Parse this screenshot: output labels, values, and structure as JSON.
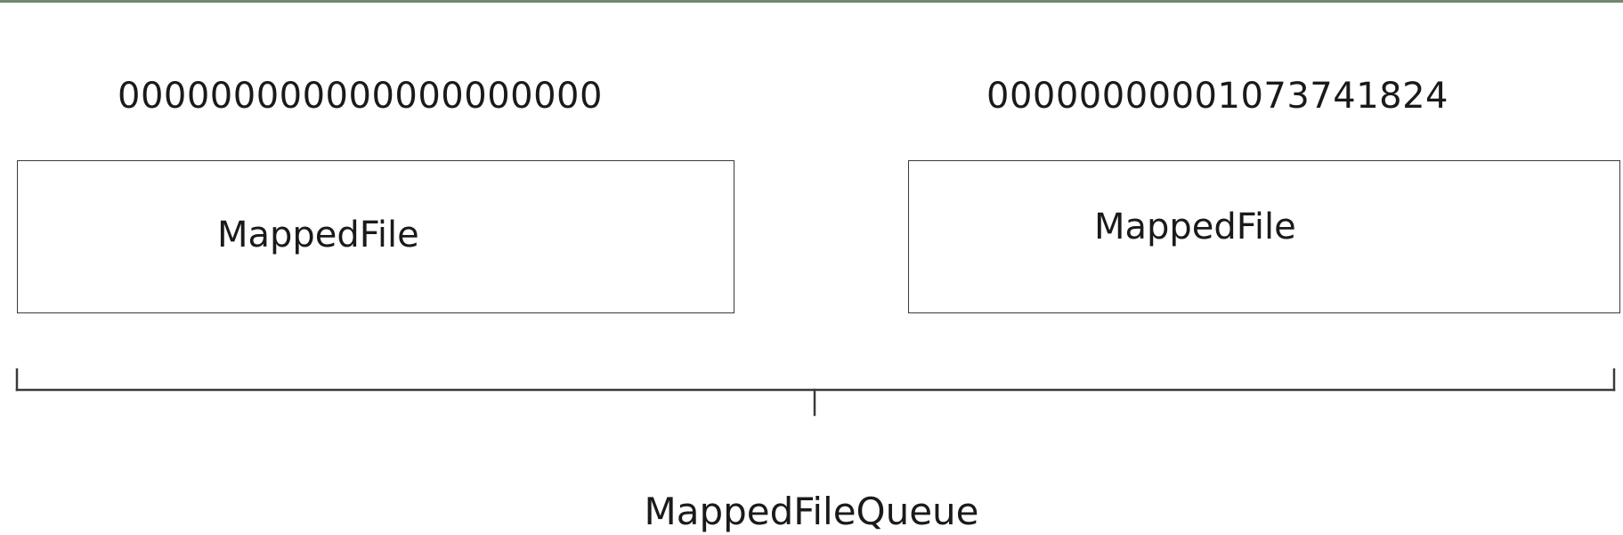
{
  "offsets": {
    "left": "000000000000000000000",
    "right": "00000000001073741824"
  },
  "files": [
    {
      "label": "MappedFile"
    },
    {
      "label": "MappedFile"
    }
  ],
  "queue": {
    "label": "MappedFileQueue"
  },
  "colors": {
    "top_border": "#6f8a6f",
    "line": "#3a3a3a",
    "text": "#1a1a1a"
  }
}
